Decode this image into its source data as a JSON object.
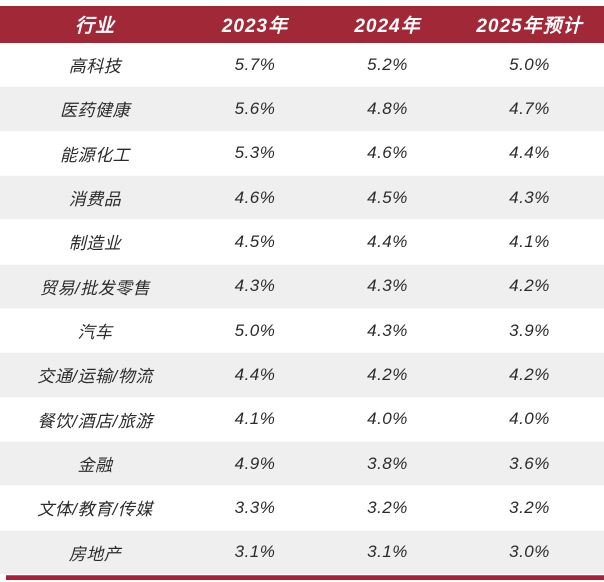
{
  "chart_data": {
    "type": "table",
    "columns": [
      "行业",
      "2023年",
      "2024年",
      "2025年预计"
    ],
    "rows": [
      [
        "高科技",
        "5.7%",
        "5.2%",
        "5.0%"
      ],
      [
        "医药健康",
        "5.6%",
        "4.8%",
        "4.7%"
      ],
      [
        "能源化工",
        "5.3%",
        "4.6%",
        "4.4%"
      ],
      [
        "消费品",
        "4.6%",
        "4.5%",
        "4.3%"
      ],
      [
        "制造业",
        "4.5%",
        "4.4%",
        "4.1%"
      ],
      [
        "贸易/批发零售",
        "4.3%",
        "4.3%",
        "4.2%"
      ],
      [
        "汽车",
        "5.0%",
        "4.3%",
        "3.9%"
      ],
      [
        "交通/运输/物流",
        "4.4%",
        "4.2%",
        "4.2%"
      ],
      [
        "餐饮/酒店/旅游",
        "4.1%",
        "4.0%",
        "4.0%"
      ],
      [
        "金融",
        "4.9%",
        "3.8%",
        "3.6%"
      ],
      [
        "文体/教育/传媒",
        "3.3%",
        "3.2%",
        "3.2%"
      ],
      [
        "房地产",
        "3.1%",
        "3.1%",
        "3.0%"
      ]
    ],
    "layout": {
      "header_position": "top",
      "alternating_rows": true,
      "first_row_background": "white"
    }
  },
  "colors": {
    "header_bg": "#a12836",
    "header_text": "#ffffff",
    "row_bg": "#ffffff",
    "row_alt_bg": "#efefef",
    "body_text": "#2b2b2b",
    "accent_bar": "#a81f38"
  }
}
